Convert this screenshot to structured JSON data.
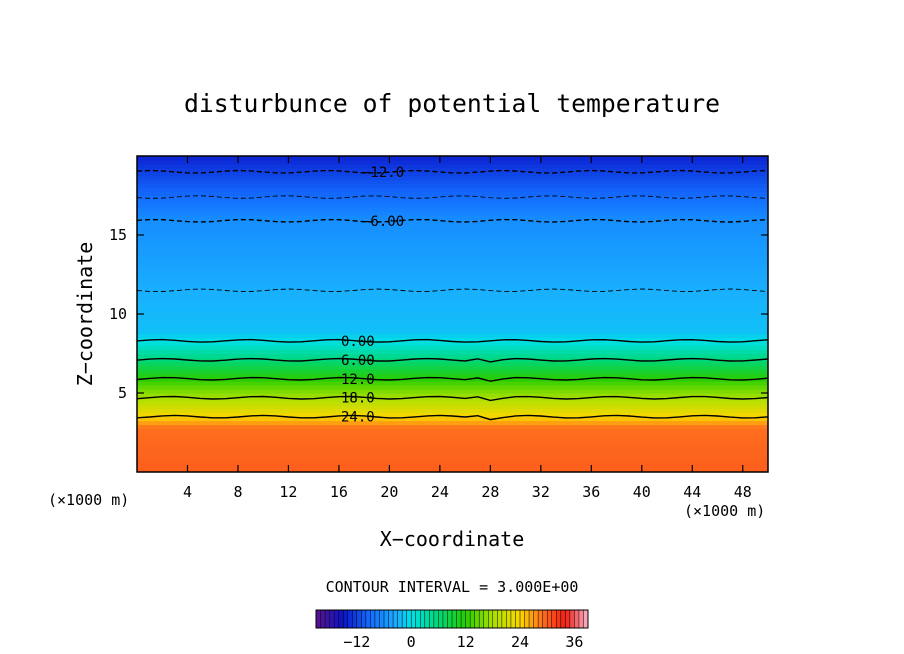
{
  "chart_data": {
    "type": "heatmap",
    "title": "disturbunce of potential temperature",
    "xlabel": "X−coordinate",
    "ylabel": "Z−coordinate",
    "x_unit": "(×1000 m)",
    "y_unit": "(×1000 m)",
    "xlim": [
      0,
      50
    ],
    "ylim": [
      0,
      20
    ],
    "x_ticks": [
      4,
      8,
      12,
      16,
      20,
      24,
      28,
      32,
      36,
      40,
      44,
      48
    ],
    "y_ticks": [
      5,
      10,
      15
    ],
    "contour_interval_text": "CONTOUR INTERVAL = 3.000E+00",
    "contour_interval": 3.0,
    "contour_labels": [
      {
        "text": "−12.0",
        "level": -12,
        "x": 19.5,
        "z": 19.0
      },
      {
        "text": "−6.00",
        "level": -6,
        "x": 19.5,
        "z": 15.9
      },
      {
        "text": "0.00",
        "level": 0,
        "x": 17.5,
        "z": 8.3
      },
      {
        "text": "6.00",
        "level": 6,
        "x": 17.5,
        "z": 7.1
      },
      {
        "text": "12.0",
        "level": 12,
        "x": 17.5,
        "z": 5.9
      },
      {
        "text": "18.0",
        "level": 18,
        "x": 17.5,
        "z": 4.7
      },
      {
        "text": "24.0",
        "level": 24,
        "x": 17.5,
        "z": 3.5
      }
    ],
    "levels": [
      {
        "z": 0.0,
        "value": 30
      },
      {
        "z": 2.8,
        "value": 29
      },
      {
        "z": 3.5,
        "value": 24
      },
      {
        "z": 4.7,
        "value": 18
      },
      {
        "z": 5.9,
        "value": 12
      },
      {
        "z": 7.1,
        "value": 6
      },
      {
        "z": 8.3,
        "value": 0
      },
      {
        "z": 8.9,
        "value": -2
      },
      {
        "z": 11.5,
        "value": -3
      },
      {
        "z": 15.9,
        "value": -6
      },
      {
        "z": 17.4,
        "value": -9
      },
      {
        "z": 19.0,
        "value": -12
      },
      {
        "z": 20.0,
        "value": -14
      }
    ],
    "colorbar": {
      "ticks": [
        "−12",
        "0",
        "12",
        "24",
        "36"
      ],
      "tick_values": [
        -12,
        0,
        12,
        24,
        36
      ],
      "range": [
        -21,
        39
      ]
    },
    "colors": {
      "deep_blue": "#1422d6",
      "sky_blue": "#19a9ff",
      "cyan": "#00e0e0",
      "green": "#22d000",
      "yellow": "#f0e800",
      "orange": "#ff6d1c"
    }
  }
}
